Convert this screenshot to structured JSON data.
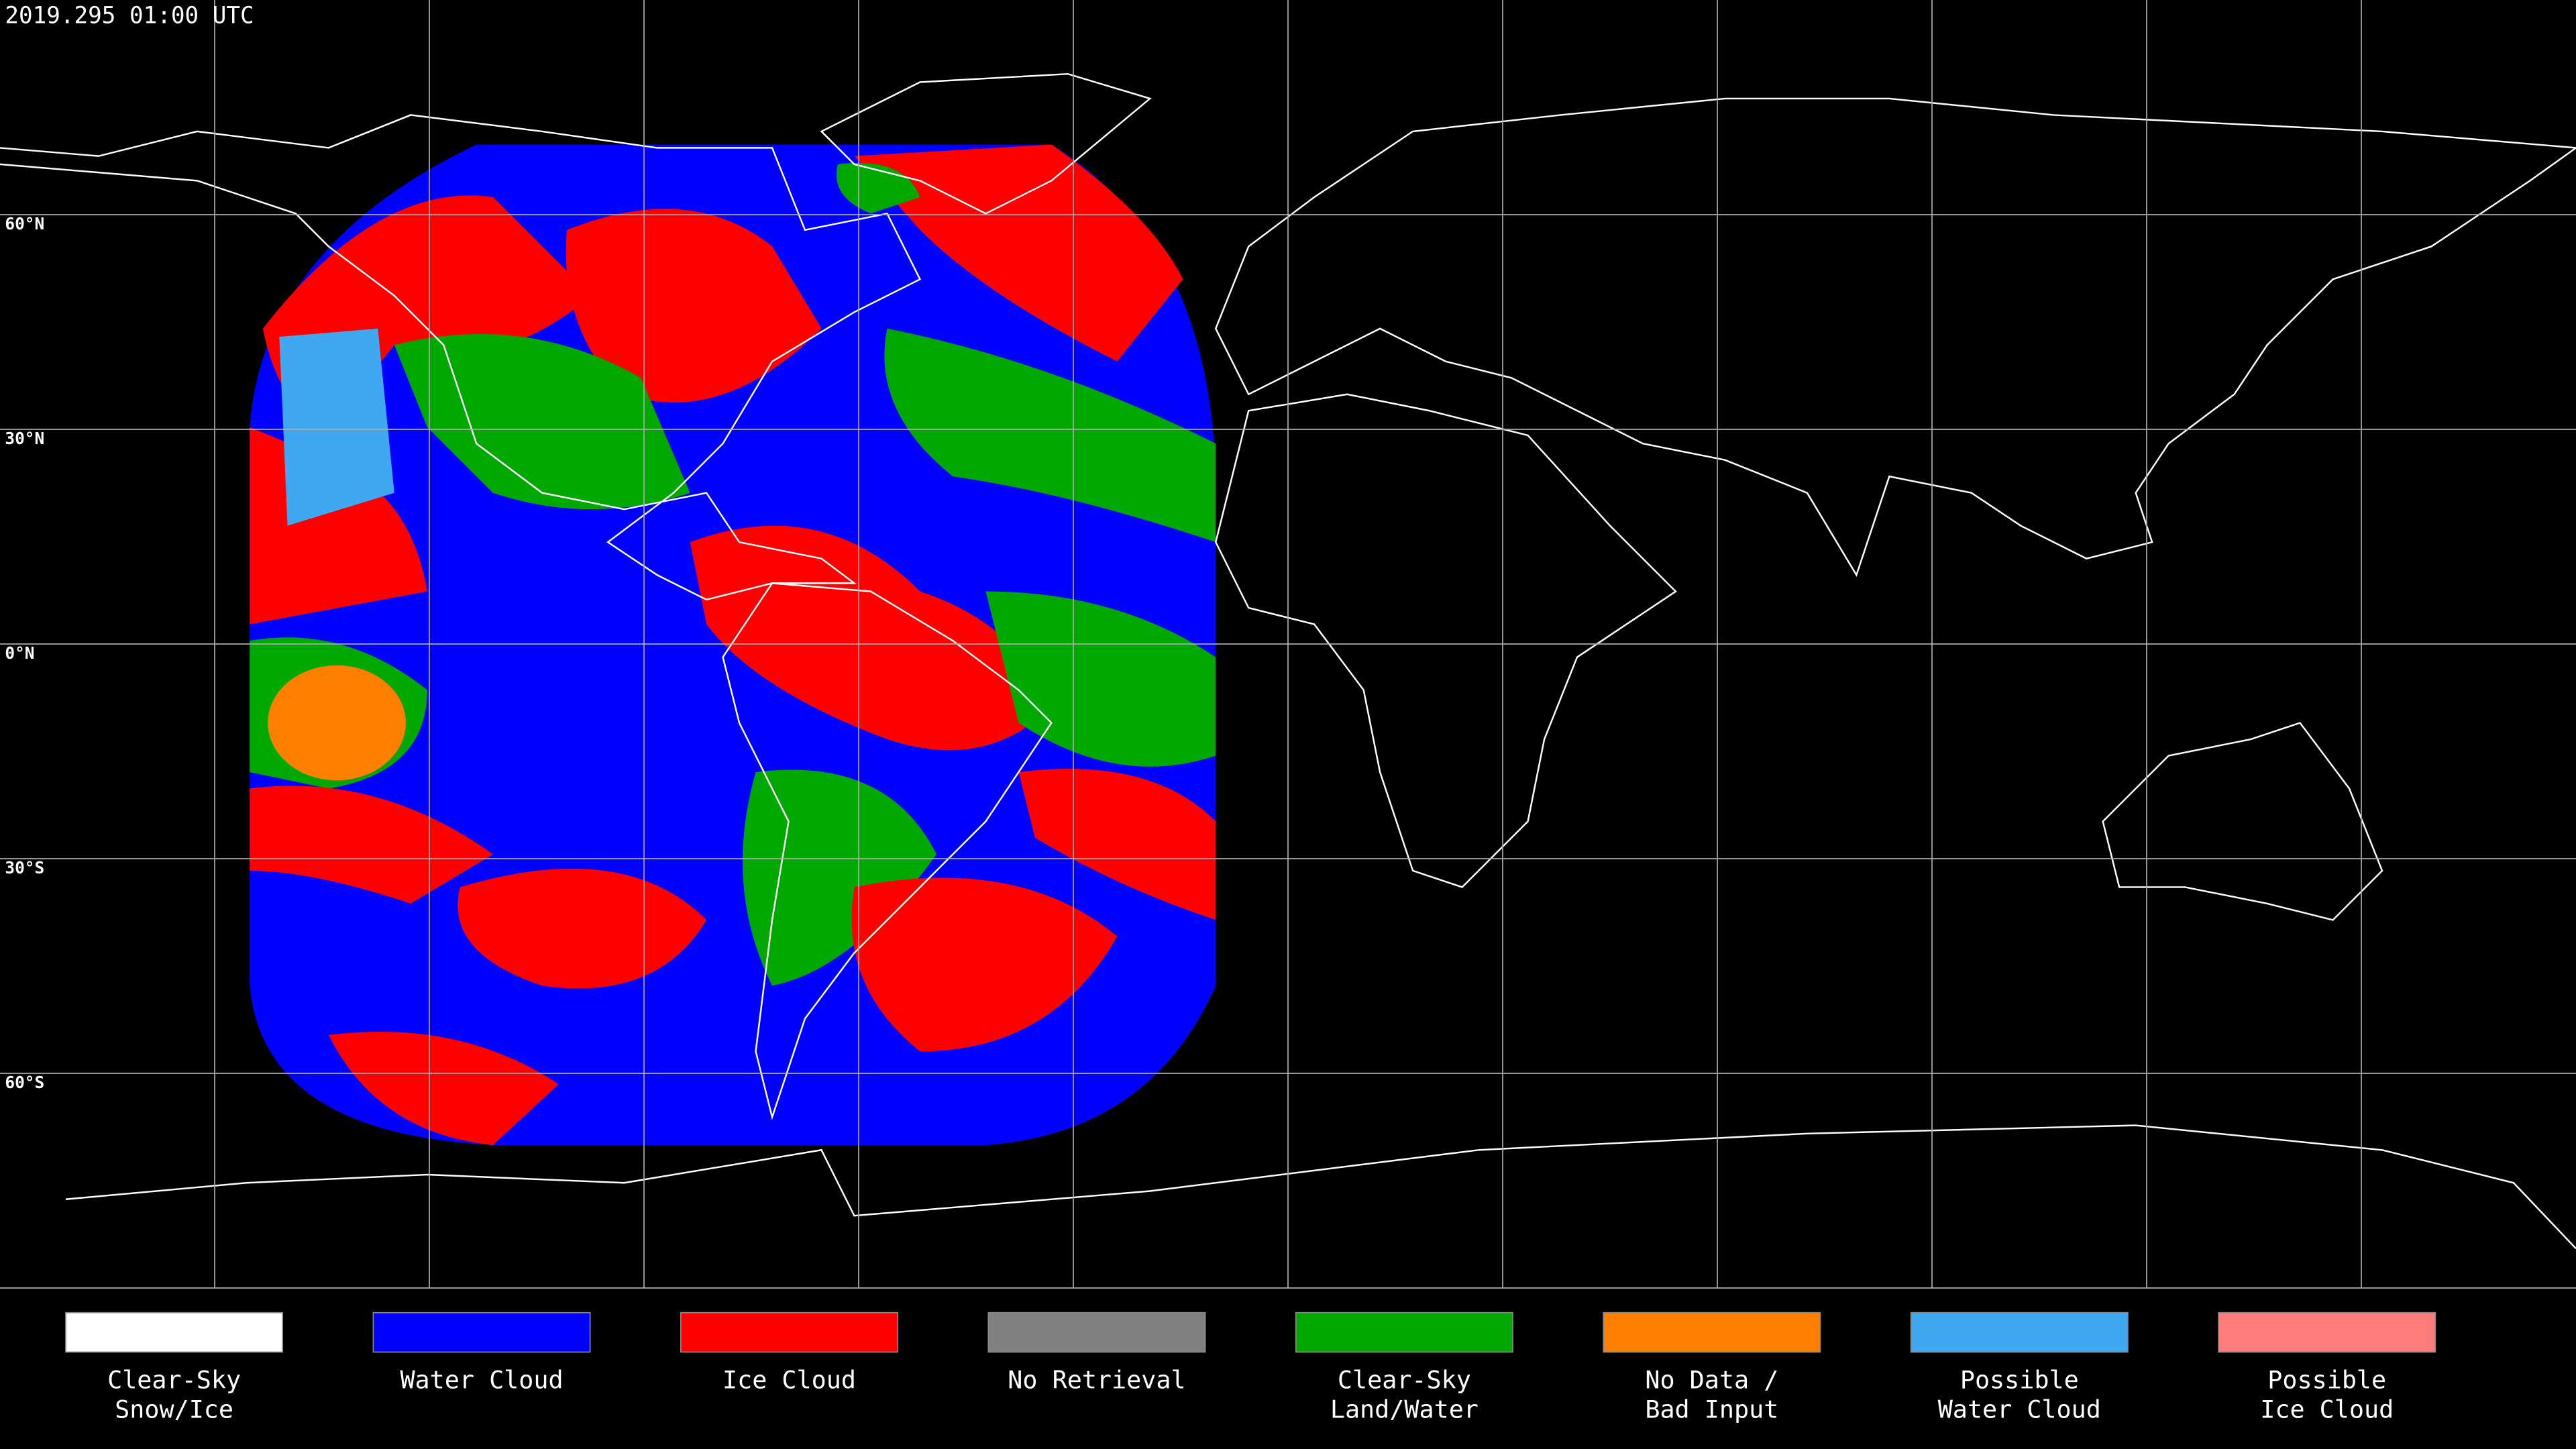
{
  "header": {
    "title": "2019.295 01:00 UTC"
  },
  "map": {
    "latitude_labels": [
      "60°N",
      "30°N",
      "0°N",
      "30°S",
      "60°S"
    ]
  },
  "legend": {
    "items": [
      {
        "label": [
          "Clear-Sky",
          "Snow/Ice"
        ],
        "color": "#ffffff"
      },
      {
        "label": [
          "Water Cloud"
        ],
        "color": "#0000ff"
      },
      {
        "label": [
          "Ice Cloud"
        ],
        "color": "#ff0000"
      },
      {
        "label": [
          "No Retrieval"
        ],
        "color": "#808080"
      },
      {
        "label": [
          "Clear-Sky",
          "Land/Water"
        ],
        "color": "#00a800"
      },
      {
        "label": [
          "No Data /",
          "Bad Input"
        ],
        "color": "#ff8000"
      },
      {
        "label": [
          "Possible",
          "Water Cloud"
        ],
        "color": "#40a8f0"
      },
      {
        "label": [
          "Possible",
          "Ice Cloud"
        ],
        "color": "#ff7c7c"
      }
    ]
  }
}
